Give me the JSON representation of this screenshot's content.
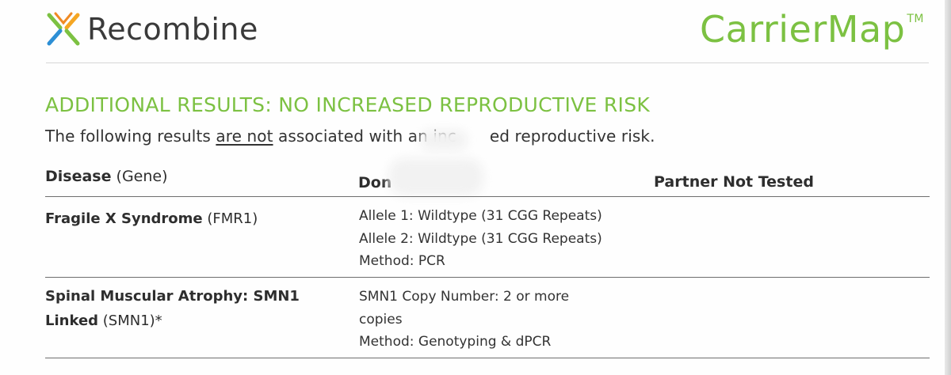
{
  "header": {
    "brand": "Recombine",
    "product": "CarrierMap",
    "product_mark": "TM",
    "colors": {
      "accent_green": "#7cc142",
      "logo_orange": "#f5a623",
      "logo_blue": "#2d8fd5",
      "logo_green": "#7cc142"
    }
  },
  "section": {
    "title": "ADDITIONAL RESULTS: NO INCREASED REPRODUCTIVE RISK",
    "subtitle_before": "The following results ",
    "subtitle_underlined": "are not",
    "subtitle_after": " associated with an inc",
    "subtitle_tail": "ed reproductive risk."
  },
  "table": {
    "col_disease_bold": "Disease",
    "col_disease_rest": " (Gene)",
    "col_donor": "Don",
    "col_partner": "Partner Not Tested",
    "rows": [
      {
        "disease_bold": "Fragile X Syndrome",
        "gene": " (FMR1)",
        "donor_lines": [
          "Allele 1: Wildtype (31 CGG Repeats)",
          "Allele 2: Wildtype (31 CGG Repeats)",
          "Method: PCR"
        ]
      },
      {
        "disease_bold_line1": "Spinal Muscular Atrophy: SMN1",
        "disease_bold_line2": "Linked",
        "gene": " (SMN1)*",
        "donor_lines": [
          "SMN1 Copy Number: 2 or more",
          "copies",
          "Method: Genotyping & dPCR"
        ]
      }
    ]
  }
}
